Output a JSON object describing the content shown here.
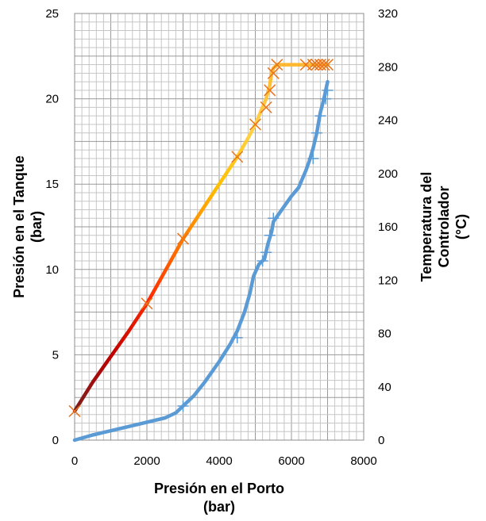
{
  "chart_data": {
    "type": "line",
    "title": "",
    "xlabel": [
      "Presión en el Porto",
      "(bar)"
    ],
    "ylabel": [
      "Presión en el Tanque",
      "(bar)"
    ],
    "y2label": [
      "Temperatura del",
      "Controlador",
      "(°C)"
    ],
    "xlim": [
      0,
      8000
    ],
    "ylim": [
      0,
      25
    ],
    "y2lim": [
      0,
      320
    ],
    "xticks": [
      "0",
      "2000",
      "4000",
      "6000",
      "8000"
    ],
    "yticks": [
      "0",
      "5",
      "10",
      "15",
      "20",
      "25"
    ],
    "y2ticks": [
      "0",
      "40",
      "80",
      "120",
      "160",
      "200",
      "240",
      "280",
      "320"
    ],
    "grid": true,
    "legend": "none",
    "series": [
      {
        "axis": "left",
        "color": "#5b9bd5",
        "marker": "plus",
        "x": [
          0,
          500,
          1000,
          1500,
          2000,
          2500,
          2800,
          3000,
          3300,
          3600,
          4000,
          4300,
          4500,
          4700,
          4850,
          4950,
          5100,
          5250,
          5350,
          5450,
          5500,
          5600,
          5800,
          6000,
          6200,
          6300,
          6400,
          6500,
          6600,
          6700,
          6750,
          6800,
          6850,
          6900,
          6950,
          7000
        ],
        "y": [
          0,
          0.3,
          0.55,
          0.8,
          1.05,
          1.3,
          1.6,
          2.0,
          2.6,
          3.4,
          4.6,
          5.6,
          6.4,
          7.5,
          8.6,
          9.6,
          10.3,
          10.6,
          11.5,
          12.2,
          12.8,
          13.1,
          13.7,
          14.3,
          14.8,
          15.3,
          15.8,
          16.4,
          17.1,
          18.0,
          18.6,
          19.2,
          19.6,
          20.0,
          20.5,
          21.0
        ],
        "marker_x": [
          3000,
          4500,
          5200,
          5300,
          5400,
          5500,
          6600,
          6700,
          6800,
          6950,
          7000
        ],
        "marker_y": [
          2.0,
          6.0,
          10.5,
          11.0,
          12.0,
          13.0,
          16.5,
          18.0,
          19.0,
          20.0,
          20.5
        ]
      },
      {
        "axis": "left",
        "color_stops": [
          "#7a1e1e",
          "#c00000",
          "#ff2a00",
          "#ff7a00",
          "#ffc000",
          "#ffd24a",
          "#ffb830"
        ],
        "marker": "x",
        "marker_color": "#e8741c",
        "x": [
          0,
          500,
          1000,
          1500,
          2000,
          2500,
          3000,
          3500,
          4000,
          4500,
          4800,
          5000,
          5200,
          5300,
          5400,
          5450,
          5500,
          5600,
          6000,
          6400,
          6800,
          7000
        ],
        "y": [
          1.7,
          3.4,
          4.9,
          6.4,
          8.0,
          9.9,
          11.8,
          13.4,
          15.0,
          16.6,
          17.7,
          18.5,
          19.5,
          20.0,
          20.8,
          21.5,
          21.8,
          22.0,
          22.0,
          22.0,
          22.0,
          22.0
        ],
        "marker_x": [
          0,
          2000,
          3000,
          4500,
          5000,
          5300,
          5400,
          5500,
          5600,
          6400,
          6600,
          6700,
          6800,
          6900,
          7000
        ],
        "marker_y": [
          1.7,
          8.0,
          11.8,
          16.6,
          18.5,
          19.5,
          20.5,
          21.5,
          22.0,
          22.0,
          22.0,
          22.0,
          22.0,
          22.0,
          22.0
        ]
      }
    ]
  }
}
